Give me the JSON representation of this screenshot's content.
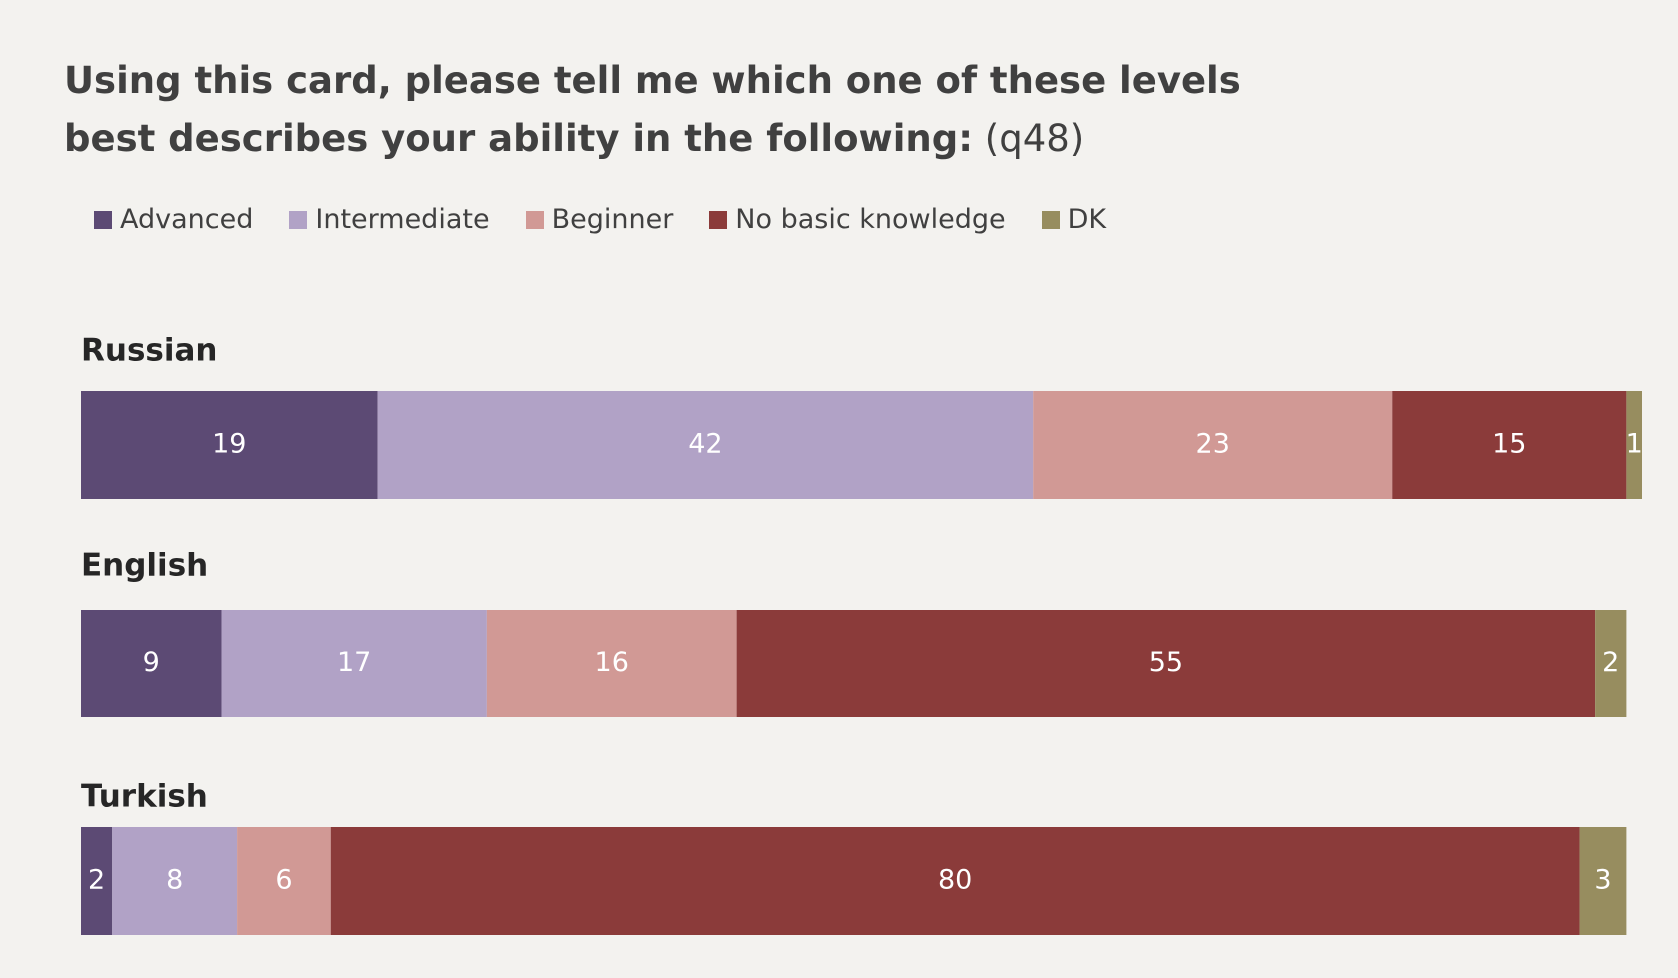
{
  "chart_data": {
    "type": "bar",
    "stacked": true,
    "orientation": "horizontal",
    "title": "Using this card, please tell me which one of these levels best describes your ability in the following:",
    "question_code": "(q48)",
    "categories": [
      "Russian",
      "English",
      "Turkish"
    ],
    "series": [
      {
        "name": "Advanced",
        "color": "#5c4a74",
        "values": [
          19,
          9,
          2
        ]
      },
      {
        "name": "Intermediate",
        "color": "#b1a2c6",
        "values": [
          42,
          17,
          8
        ]
      },
      {
        "name": "Beginner",
        "color": "#d19995",
        "values": [
          23,
          16,
          6
        ]
      },
      {
        "name": "No basic knowledge",
        "color": "#8b3b3a",
        "values": [
          15,
          55,
          80
        ]
      },
      {
        "name": "DK",
        "color": "#978d5f",
        "values": [
          1,
          2,
          3
        ]
      }
    ],
    "xlim": [
      0,
      100
    ],
    "legend": "top-left"
  }
}
